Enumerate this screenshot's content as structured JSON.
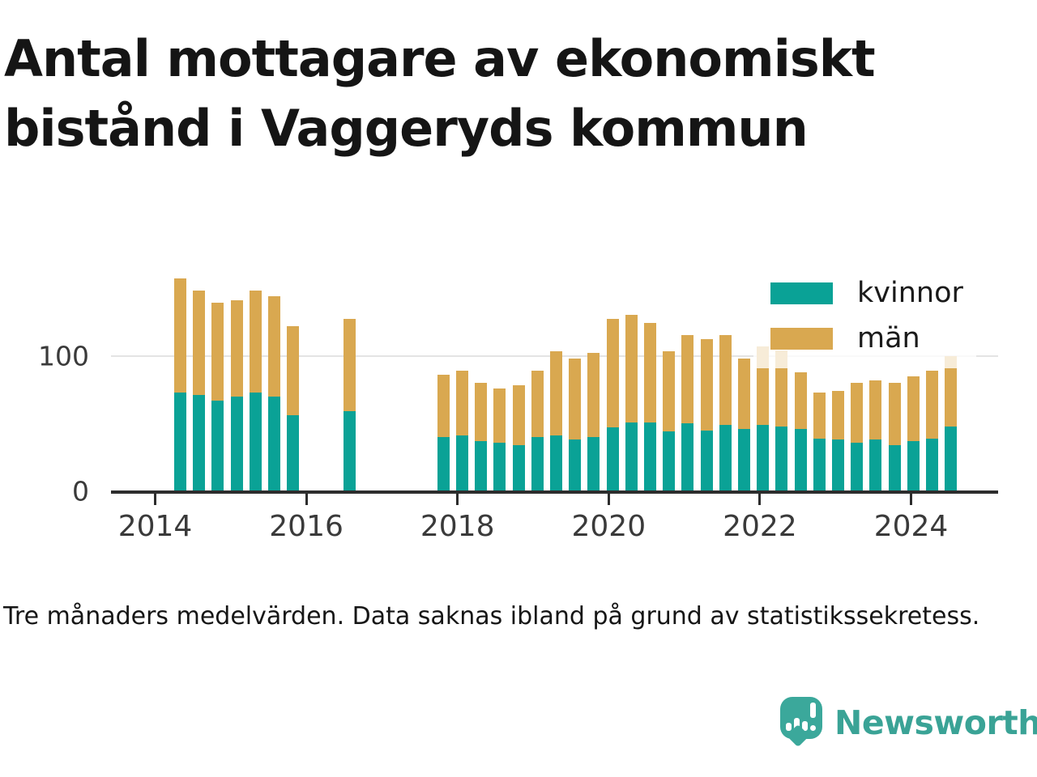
{
  "title": "Antal mottagare av ekonomiskt bistånd i Vaggeryds kommun",
  "footnote": "Tre månaders medelvärden. Data saknas ibland på grund av statistikssekretess.",
  "branding": {
    "wordmark": "Newsworthy",
    "logo_color": "#3ba89b",
    "wordmark_color": "#3aa396",
    "logo_icon": "speech-bubble-bar-chart-exclamation"
  },
  "colors": {
    "kvinnor": "#0aa296",
    "man": "#d9a850",
    "gridline": "#e4e4e4",
    "axis": "#2d2d2d",
    "text": "#151515",
    "legend_background": "rgba(255,255,255,0.78)"
  },
  "chart_data": {
    "type": "bar",
    "stacked": true,
    "title": "Antal mottagare av ekonomiskt bistånd i Vaggeryds kommun",
    "xlabel": "",
    "ylabel": "",
    "ylim": [
      0,
      160
    ],
    "yticks": [
      0,
      100
    ],
    "xticks": [
      2014,
      2016,
      2018,
      2020,
      2022,
      2024
    ],
    "grid": "horizontal-at-100",
    "legend_position": "upper-right-inside",
    "legend": [
      {
        "label": "kvinnor",
        "color": "#0aa296"
      },
      {
        "label": "män",
        "color": "#d9a850"
      }
    ],
    "x_unit": "quarter (3-month averages)",
    "x": [
      "2014-Q2",
      "2014-Q3",
      "2014-Q4",
      "2015-Q1",
      "2015-Q2",
      "2015-Q3",
      "2015-Q4",
      "2016-Q3",
      "2017-Q4",
      "2018-Q1",
      "2018-Q2",
      "2018-Q3",
      "2018-Q4",
      "2019-Q1",
      "2019-Q2",
      "2019-Q3",
      "2019-Q4",
      "2020-Q1",
      "2020-Q2",
      "2020-Q3",
      "2020-Q4",
      "2021-Q1",
      "2021-Q2",
      "2021-Q3",
      "2021-Q4",
      "2022-Q1",
      "2022-Q2",
      "2022-Q3",
      "2022-Q4",
      "2023-Q1",
      "2023-Q2",
      "2023-Q3",
      "2023-Q4",
      "2024-Q1",
      "2024-Q2",
      "2024-Q3"
    ],
    "series": [
      {
        "name": "kvinnor",
        "color": "#0aa296",
        "values": [
          73,
          71,
          67,
          70,
          73,
          70,
          56,
          59,
          40,
          41,
          37,
          36,
          34,
          40,
          41,
          38,
          40,
          47,
          51,
          51,
          44,
          50,
          45,
          49,
          46,
          49,
          48,
          46,
          39,
          38,
          36,
          38,
          34,
          37,
          39,
          48
        ]
      },
      {
        "name": "män",
        "color": "#d9a850",
        "values": [
          84,
          77,
          72,
          71,
          75,
          74,
          66,
          68,
          46,
          48,
          43,
          40,
          44,
          49,
          62,
          60,
          62,
          80,
          79,
          73,
          59,
          65,
          67,
          66,
          52,
          58,
          56,
          42,
          34,
          36,
          44,
          44,
          46,
          48,
          50,
          52
        ]
      }
    ],
    "missing_quarters": [
      "2016-Q1",
      "2016-Q2",
      "2016-Q4",
      "2017-Q1",
      "2017-Q2",
      "2017-Q3"
    ]
  }
}
